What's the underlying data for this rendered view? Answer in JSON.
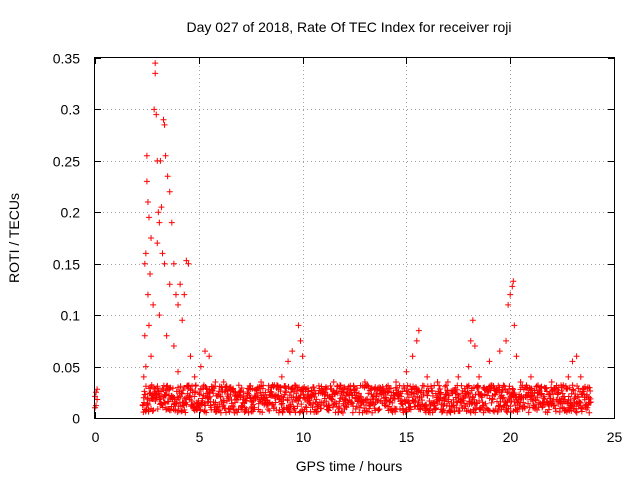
{
  "chart_data": {
    "type": "scatter",
    "title": "Day 027 of 2018, Rate Of TEC Index for receiver roji",
    "xlabel": "GPS time / hours",
    "ylabel": "ROTI / TECUs",
    "xlim": [
      0,
      25
    ],
    "ylim": [
      0,
      0.35
    ],
    "x_ticks": [
      0,
      5,
      10,
      15,
      20,
      25
    ],
    "x_tick_labels": [
      "0",
      "5",
      "10",
      "15",
      "20",
      "25"
    ],
    "y_ticks": [
      0,
      0.05,
      0.1,
      0.15,
      0.2,
      0.25,
      0.3,
      0.35
    ],
    "y_tick_labels": [
      "0",
      "0.05",
      "0.1",
      "0.15",
      "0.2",
      "0.25",
      "0.3",
      "0.35"
    ],
    "grid": true,
    "marker": "+",
    "color": "#ff0000",
    "series": [
      {
        "name": "ROTI",
        "points": [
          [
            0.0,
            0.01
          ],
          [
            0.0,
            0.021
          ],
          [
            0.05,
            0.025
          ],
          [
            0.05,
            0.012
          ],
          [
            0.1,
            0.028
          ],
          [
            0.1,
            0.018
          ],
          [
            2.3,
            0.012
          ],
          [
            2.35,
            0.04
          ],
          [
            2.4,
            0.08
          ],
          [
            2.4,
            0.15
          ],
          [
            2.45,
            0.16
          ],
          [
            2.45,
            0.05
          ],
          [
            2.5,
            0.23
          ],
          [
            2.5,
            0.255
          ],
          [
            2.55,
            0.21
          ],
          [
            2.55,
            0.12
          ],
          [
            2.6,
            0.195
          ],
          [
            2.6,
            0.09
          ],
          [
            2.65,
            0.14
          ],
          [
            2.7,
            0.175
          ],
          [
            2.7,
            0.06
          ],
          [
            2.8,
            0.11
          ],
          [
            2.8,
            0.03
          ],
          [
            2.85,
            0.3
          ],
          [
            2.9,
            0.345
          ],
          [
            2.9,
            0.335
          ],
          [
            2.95,
            0.295
          ],
          [
            3.0,
            0.25
          ],
          [
            3.0,
            0.17
          ],
          [
            3.05,
            0.2
          ],
          [
            3.1,
            0.19
          ],
          [
            3.1,
            0.1
          ],
          [
            3.15,
            0.25
          ],
          [
            3.2,
            0.205
          ],
          [
            3.25,
            0.16
          ],
          [
            3.3,
            0.29
          ],
          [
            3.35,
            0.285
          ],
          [
            3.35,
            0.15
          ],
          [
            3.4,
            0.255
          ],
          [
            3.45,
            0.08
          ],
          [
            3.5,
            0.235
          ],
          [
            3.6,
            0.22
          ],
          [
            3.6,
            0.13
          ],
          [
            3.7,
            0.19
          ],
          [
            3.8,
            0.15
          ],
          [
            3.8,
            0.07
          ],
          [
            3.9,
            0.12
          ],
          [
            4.0,
            0.11
          ],
          [
            4.0,
            0.045
          ],
          [
            4.1,
            0.13
          ],
          [
            4.2,
            0.095
          ],
          [
            4.3,
            0.12
          ],
          [
            4.4,
            0.153
          ],
          [
            4.5,
            0.15
          ],
          [
            4.6,
            0.06
          ],
          [
            4.8,
            0.04
          ],
          [
            5.1,
            0.05
          ],
          [
            5.3,
            0.065
          ],
          [
            5.5,
            0.06
          ],
          [
            5.8,
            0.035
          ],
          [
            6.2,
            0.035
          ],
          [
            6.5,
            0.03
          ],
          [
            7.0,
            0.025
          ],
          [
            7.5,
            0.028
          ],
          [
            8.0,
            0.035
          ],
          [
            8.5,
            0.03
          ],
          [
            9.0,
            0.04
          ],
          [
            9.3,
            0.055
          ],
          [
            9.5,
            0.065
          ],
          [
            9.8,
            0.09
          ],
          [
            9.9,
            0.075
          ],
          [
            10.0,
            0.06
          ],
          [
            10.5,
            0.03
          ],
          [
            11.0,
            0.025
          ],
          [
            11.5,
            0.035
          ],
          [
            12.0,
            0.03
          ],
          [
            12.5,
            0.025
          ],
          [
            13.0,
            0.035
          ],
          [
            13.5,
            0.03
          ],
          [
            14.0,
            0.025
          ],
          [
            14.5,
            0.035
          ],
          [
            15.0,
            0.045
          ],
          [
            15.3,
            0.06
          ],
          [
            15.5,
            0.075
          ],
          [
            15.6,
            0.085
          ],
          [
            16.0,
            0.04
          ],
          [
            16.5,
            0.035
          ],
          [
            17.0,
            0.035
          ],
          [
            17.5,
            0.04
          ],
          [
            18.0,
            0.05
          ],
          [
            18.1,
            0.075
          ],
          [
            18.2,
            0.095
          ],
          [
            18.3,
            0.07
          ],
          [
            18.5,
            0.04
          ],
          [
            19.0,
            0.055
          ],
          [
            19.5,
            0.065
          ],
          [
            19.8,
            0.075
          ],
          [
            19.9,
            0.11
          ],
          [
            20.0,
            0.12
          ],
          [
            20.1,
            0.128
          ],
          [
            20.15,
            0.133
          ],
          [
            20.2,
            0.09
          ],
          [
            20.3,
            0.06
          ],
          [
            20.5,
            0.035
          ],
          [
            21.0,
            0.04
          ],
          [
            21.5,
            0.03
          ],
          [
            22.0,
            0.035
          ],
          [
            22.5,
            0.03
          ],
          [
            22.8,
            0.04
          ],
          [
            23.0,
            0.055
          ],
          [
            23.2,
            0.06
          ],
          [
            23.4,
            0.04
          ],
          [
            23.6,
            0.03
          ],
          [
            23.8,
            0.02
          ]
        ],
        "baseline_band": {
          "x_start": 2.3,
          "x_end": 23.9,
          "y_min": 0.005,
          "y_max": 0.032
        }
      }
    ]
  }
}
